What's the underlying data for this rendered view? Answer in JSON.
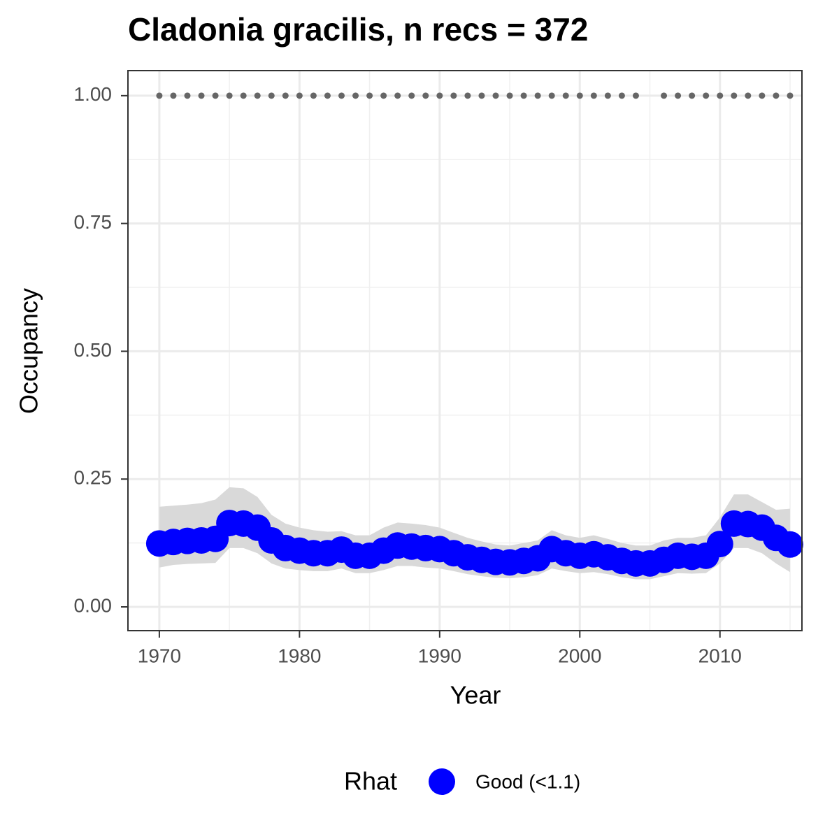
{
  "chart_data": {
    "type": "line",
    "title": "Cladonia gracilis, n recs = 372",
    "x_label": "Year",
    "y_label": "Occupancy",
    "legend_title": "Rhat",
    "x": [
      1970,
      1971,
      1972,
      1973,
      1974,
      1975,
      1976,
      1977,
      1978,
      1979,
      1980,
      1981,
      1982,
      1983,
      1984,
      1985,
      1986,
      1987,
      1988,
      1989,
      1990,
      1991,
      1992,
      1993,
      1994,
      1995,
      1996,
      1997,
      1998,
      1999,
      2000,
      2001,
      2002,
      2003,
      2004,
      2005,
      2006,
      2007,
      2008,
      2009,
      2010,
      2011,
      2012,
      2013,
      2014,
      2015
    ],
    "series": [
      {
        "name": "Good (<1.1)",
        "color": "#0000ff",
        "values": [
          0.124,
          0.127,
          0.129,
          0.13,
          0.133,
          0.164,
          0.163,
          0.155,
          0.13,
          0.115,
          0.11,
          0.105,
          0.105,
          0.112,
          0.1,
          0.1,
          0.11,
          0.12,
          0.118,
          0.115,
          0.113,
          0.105,
          0.097,
          0.092,
          0.088,
          0.087,
          0.09,
          0.095,
          0.113,
          0.105,
          0.1,
          0.103,
          0.097,
          0.09,
          0.085,
          0.085,
          0.092,
          0.1,
          0.098,
          0.1,
          0.123,
          0.163,
          0.162,
          0.155,
          0.135,
          0.122
        ],
        "lower": [
          0.077,
          0.082,
          0.084,
          0.085,
          0.086,
          0.115,
          0.115,
          0.105,
          0.085,
          0.075,
          0.072,
          0.07,
          0.07,
          0.075,
          0.066,
          0.066,
          0.072,
          0.08,
          0.08,
          0.077,
          0.075,
          0.07,
          0.064,
          0.06,
          0.057,
          0.056,
          0.058,
          0.062,
          0.075,
          0.07,
          0.066,
          0.068,
          0.064,
          0.058,
          0.054,
          0.054,
          0.06,
          0.066,
          0.065,
          0.066,
          0.085,
          0.115,
          0.115,
          0.105,
          0.085,
          0.068
        ],
        "upper": [
          0.196,
          0.198,
          0.2,
          0.203,
          0.21,
          0.234,
          0.232,
          0.215,
          0.18,
          0.163,
          0.155,
          0.15,
          0.147,
          0.148,
          0.14,
          0.14,
          0.155,
          0.165,
          0.163,
          0.16,
          0.155,
          0.145,
          0.135,
          0.128,
          0.122,
          0.12,
          0.125,
          0.13,
          0.15,
          0.14,
          0.135,
          0.14,
          0.133,
          0.125,
          0.12,
          0.12,
          0.13,
          0.135,
          0.135,
          0.14,
          0.175,
          0.22,
          0.22,
          0.205,
          0.19,
          0.192
        ],
        "band_color": "#d9d9d9"
      }
    ],
    "record_x": [
      1970,
      1971,
      1972,
      1973,
      1974,
      1975,
      1976,
      1977,
      1978,
      1979,
      1980,
      1981,
      1982,
      1983,
      1984,
      1985,
      1986,
      1987,
      1988,
      1989,
      1990,
      1991,
      1992,
      1993,
      1994,
      1995,
      1996,
      1997,
      1998,
      1999,
      2000,
      2001,
      2002,
      2003,
      2004,
      2006,
      2007,
      2008,
      2009,
      2010,
      2011,
      2012,
      2013,
      2014,
      2015
    ],
    "record_y": 1,
    "record_color": "#666666",
    "xlim": [
      1967.76,
      2015.85
    ],
    "ylim": [
      -0.0465,
      1.049
    ],
    "xticks": [
      1970,
      1980,
      1990,
      2000,
      2010
    ],
    "yticks": [
      {
        "value": 0,
        "label": "0.00"
      },
      {
        "value": 0.25,
        "label": "0.25"
      },
      {
        "value": 0.5,
        "label": "0.50"
      },
      {
        "value": 0.75,
        "label": "0.75"
      },
      {
        "value": 1,
        "label": "1.00"
      }
    ],
    "minor_xticks": [
      1975,
      1985,
      1995,
      2005,
      2015
    ],
    "minor_yticks": [
      0.125,
      0.375,
      0.625,
      0.875
    ],
    "grid": true
  }
}
